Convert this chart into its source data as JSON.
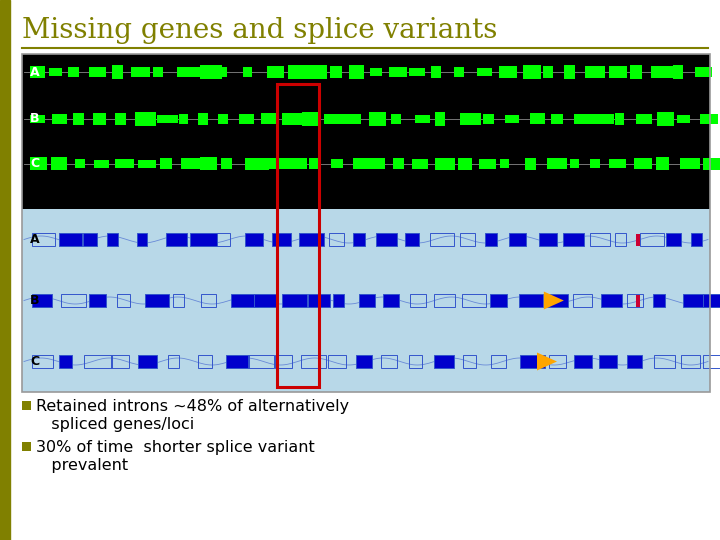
{
  "title": "Missing genes and splice variants",
  "title_color": "#808000",
  "title_fontsize": 20,
  "bullet_color": "#808000",
  "bullet1_line1": "Retained introns ~48% of alternatively",
  "bullet1_line2": "   spliced genes/loci",
  "bullet2_line1": "30% of time  shorter splice variant",
  "bullet2_line2": "   prevalent",
  "bg_color": "#ffffff",
  "left_bar_color": "#808000",
  "panel_bg_black": "#000000",
  "panel_bg_blue": "#b8d8e8",
  "green_color": "#00ff00",
  "blue_dark": "#0000cc",
  "blue_outline": "#3355cc",
  "red_rect_color": "#cc0000",
  "orange_color": "#ffa500",
  "white_color": "#ffffff",
  "label_color_black": "#ffffff",
  "label_color_blue": "#000000"
}
